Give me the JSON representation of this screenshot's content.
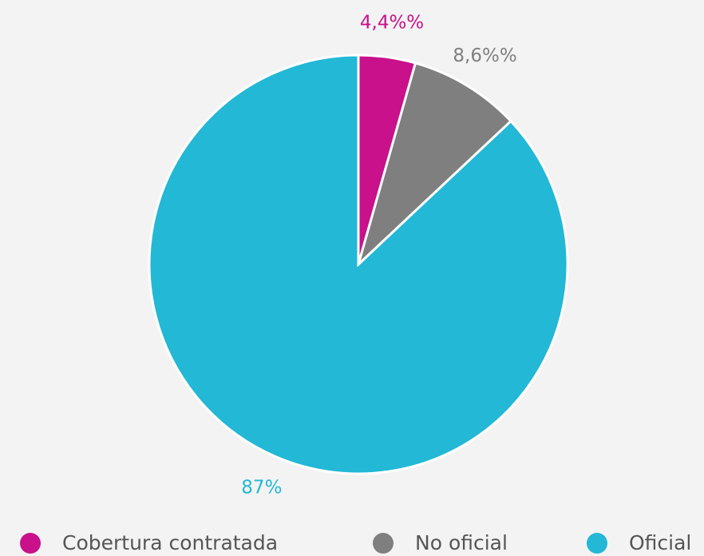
{
  "chart_data": {
    "type": "pie",
    "categories": [
      "Cobertura contratada",
      "No oficial",
      "Oficial"
    ],
    "values": [
      4.4,
      8.6,
      87
    ],
    "value_labels": [
      "4,4%%",
      "8,6%%",
      "87%"
    ],
    "colors": [
      "#c8118a",
      "#7f7f7f",
      "#22b8d6"
    ],
    "legend": "bottom"
  }
}
